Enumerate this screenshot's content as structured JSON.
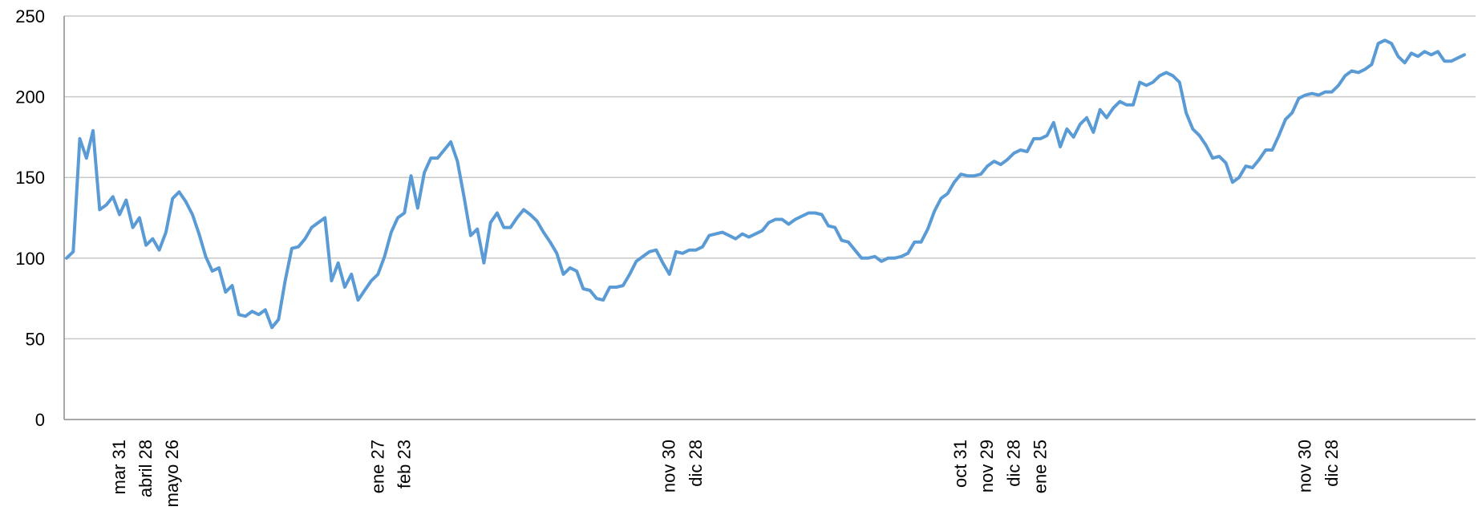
{
  "chart_data": {
    "type": "line",
    "title": "",
    "xlabel": "",
    "ylabel": "",
    "ylim": [
      0,
      250
    ],
    "y_ticks": [
      0,
      50,
      100,
      150,
      200,
      250
    ],
    "grid": "horizontal",
    "legend": "none",
    "x_tick_labels": [
      {
        "index": 8,
        "label": "mar 31"
      },
      {
        "index": 12,
        "label": "abril 28"
      },
      {
        "index": 16,
        "label": "mayo 26"
      },
      {
        "index": 47,
        "label": "ene 27"
      },
      {
        "index": 51,
        "label": "feb 23"
      },
      {
        "index": 91,
        "label": "nov 30"
      },
      {
        "index": 95,
        "label": "dic 28"
      },
      {
        "index": 135,
        "label": "oct 31"
      },
      {
        "index": 139,
        "label": "nov 29"
      },
      {
        "index": 143,
        "label": "dic 28"
      },
      {
        "index": 147,
        "label": "ene 25"
      },
      {
        "index": 187,
        "label": "nov 30"
      },
      {
        "index": 191,
        "label": "dic 28"
      }
    ],
    "series": [
      {
        "color": "#5b9bd5",
        "values": [
          100,
          104,
          174,
          162,
          179,
          130,
          133,
          138,
          127,
          136,
          119,
          125,
          108,
          112,
          105,
          116,
          137,
          141,
          135,
          127,
          115,
          101,
          92,
          94,
          79,
          83,
          65,
          64,
          67,
          65,
          68,
          57,
          62,
          86,
          106,
          107,
          112,
          119,
          122,
          125,
          86,
          97,
          82,
          90,
          74,
          80,
          86,
          90,
          101,
          116,
          125,
          128,
          151,
          131,
          153,
          162,
          162,
          167,
          172,
          160,
          138,
          114,
          118,
          97,
          122,
          128,
          119,
          119,
          125,
          130,
          127,
          123,
          116,
          110,
          103,
          90,
          94,
          92,
          81,
          80,
          75,
          74,
          82,
          82,
          83,
          90,
          98,
          101,
          104,
          105,
          97,
          90,
          104,
          103,
          105,
          105,
          107,
          114,
          115,
          116,
          114,
          112,
          115,
          113,
          115,
          117,
          122,
          124,
          124,
          121,
          124,
          126,
          128,
          128,
          127,
          120,
          119,
          111,
          110,
          105,
          100,
          100,
          101,
          98,
          100,
          100,
          101,
          103,
          110,
          110,
          118,
          129,
          137,
          140,
          147,
          152,
          151,
          151,
          152,
          157,
          160,
          158,
          161,
          165,
          167,
          166,
          174,
          174,
          176,
          184,
          169,
          180,
          175,
          183,
          187,
          178,
          192,
          187,
          193,
          197,
          195,
          195,
          209,
          207,
          209,
          213,
          215,
          213,
          209,
          190,
          180,
          176,
          170,
          162,
          163,
          159,
          147,
          150,
          157,
          156,
          161,
          167,
          167,
          176,
          186,
          190,
          199,
          201,
          202,
          201,
          203,
          203,
          207,
          213,
          216,
          215,
          217,
          220,
          233,
          235,
          233,
          225,
          221,
          227,
          225,
          228,
          226,
          228,
          222,
          222,
          224,
          226
        ]
      }
    ]
  }
}
